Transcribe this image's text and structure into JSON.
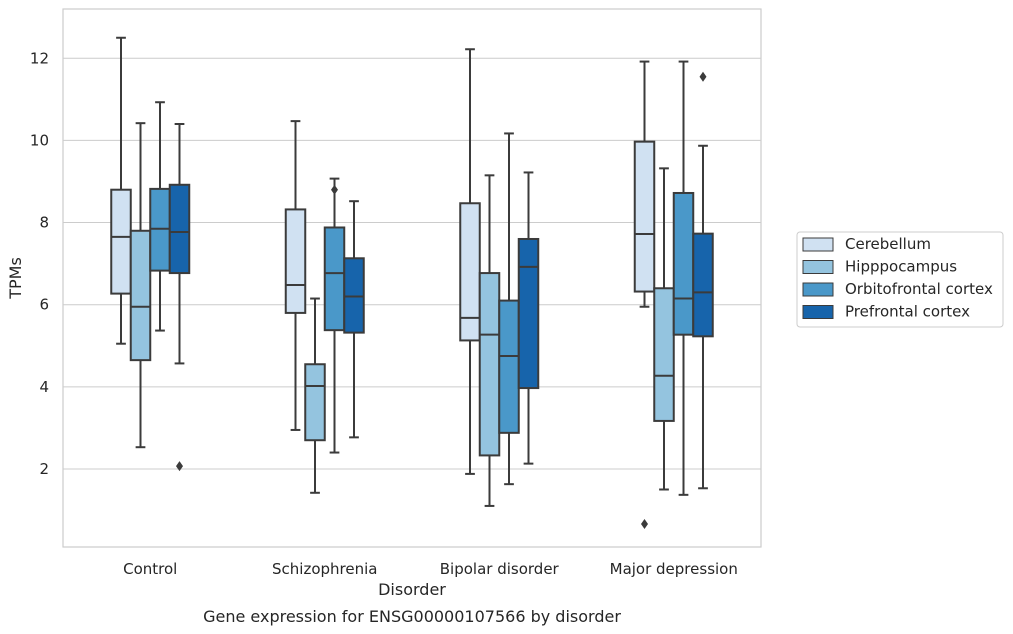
{
  "chart_data": {
    "type": "box",
    "title": "",
    "caption": "Gene expression for ENSG00000107566 by disorder",
    "xlabel": "Disorder",
    "ylabel": "TPMs",
    "ylim": [
      0.1,
      13.2
    ],
    "yticks": [
      2,
      4,
      6,
      8,
      10,
      12
    ],
    "grid": "horizontal",
    "legend_position": "right",
    "categories": [
      "Control",
      "Schizophrenia",
      "Bipolar disorder",
      "Major depression"
    ],
    "series": [
      {
        "name": "Cerebellum",
        "color": "#d0e1f2",
        "boxes": [
          {
            "whisker_low": 5.05,
            "q1": 6.27,
            "median": 7.65,
            "q3": 8.8,
            "whisker_high": 12.5,
            "outliers": []
          },
          {
            "whisker_low": 2.95,
            "q1": 5.8,
            "median": 6.48,
            "q3": 8.32,
            "whisker_high": 10.47,
            "outliers": []
          },
          {
            "whisker_low": 1.88,
            "q1": 5.13,
            "median": 5.68,
            "q3": 8.47,
            "whisker_high": 12.22,
            "outliers": []
          },
          {
            "whisker_low": 5.95,
            "q1": 6.32,
            "median": 7.72,
            "q3": 9.97,
            "whisker_high": 11.92,
            "outliers": [
              0.66
            ]
          }
        ]
      },
      {
        "name": "Hipppocampus",
        "color": "#94c4df",
        "boxes": [
          {
            "whisker_low": 2.53,
            "q1": 4.65,
            "median": 5.95,
            "q3": 7.8,
            "whisker_high": 10.42,
            "outliers": []
          },
          {
            "whisker_low": 1.42,
            "q1": 2.7,
            "median": 4.02,
            "q3": 4.55,
            "whisker_high": 6.15,
            "outliers": []
          },
          {
            "whisker_low": 1.1,
            "q1": 2.33,
            "median": 5.27,
            "q3": 6.77,
            "whisker_high": 9.15,
            "outliers": []
          },
          {
            "whisker_low": 1.5,
            "q1": 3.17,
            "median": 4.27,
            "q3": 6.4,
            "whisker_high": 9.32,
            "outliers": []
          }
        ]
      },
      {
        "name": "Orbitofrontal cortex",
        "color": "#4a98c9",
        "boxes": [
          {
            "whisker_low": 5.37,
            "q1": 6.83,
            "median": 7.85,
            "q3": 8.82,
            "whisker_high": 10.93,
            "outliers": []
          },
          {
            "whisker_low": 2.4,
            "q1": 5.38,
            "median": 6.77,
            "q3": 7.88,
            "whisker_high": 9.07,
            "outliers": [
              8.8
            ]
          },
          {
            "whisker_low": 1.63,
            "q1": 2.88,
            "median": 4.75,
            "q3": 6.1,
            "whisker_high": 10.17,
            "outliers": []
          },
          {
            "whisker_low": 1.37,
            "q1": 5.27,
            "median": 6.15,
            "q3": 8.72,
            "whisker_high": 11.92,
            "outliers": []
          }
        ]
      },
      {
        "name": "Prefrontal cortex",
        "color": "#1764ab",
        "boxes": [
          {
            "whisker_low": 4.57,
            "q1": 6.77,
            "median": 7.77,
            "q3": 8.92,
            "whisker_high": 10.4,
            "outliers": [
              2.07
            ]
          },
          {
            "whisker_low": 2.77,
            "q1": 5.32,
            "median": 6.2,
            "q3": 7.13,
            "whisker_high": 8.52,
            "outliers": []
          },
          {
            "whisker_low": 2.13,
            "q1": 3.97,
            "median": 6.92,
            "q3": 7.6,
            "whisker_high": 9.22,
            "outliers": []
          },
          {
            "whisker_low": 1.53,
            "q1": 5.23,
            "median": 6.3,
            "q3": 7.73,
            "whisker_high": 9.87,
            "outliers": [
              11.55
            ]
          }
        ]
      }
    ]
  }
}
